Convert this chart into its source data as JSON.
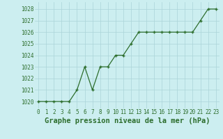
{
  "x": [
    0,
    1,
    2,
    3,
    4,
    5,
    6,
    7,
    8,
    9,
    10,
    11,
    12,
    13,
    14,
    15,
    16,
    17,
    18,
    19,
    20,
    21,
    22,
    23
  ],
  "y": [
    1020,
    1020,
    1020,
    1020,
    1020,
    1021,
    1023,
    1021,
    1023,
    1023,
    1024,
    1024,
    1025,
    1026,
    1026,
    1026,
    1026,
    1026,
    1026,
    1026,
    1026,
    1027,
    1028,
    1028
  ],
  "line_color": "#2d6e2d",
  "marker_color": "#2d6e2d",
  "bg_color": "#cceef0",
  "grid_color": "#aad4d8",
  "xlabel": "Graphe pression niveau de la mer (hPa)",
  "xlabel_color": "#2d6e2d",
  "xlabel_fontsize": 7.5,
  "tick_color": "#2d6e2d",
  "tick_fontsize": 5.5,
  "ytick_labels": [
    1020,
    1021,
    1022,
    1023,
    1024,
    1025,
    1026,
    1027,
    1028
  ],
  "ylim": [
    1019.4,
    1028.6
  ],
  "xlim": [
    -0.5,
    23.5
  ]
}
